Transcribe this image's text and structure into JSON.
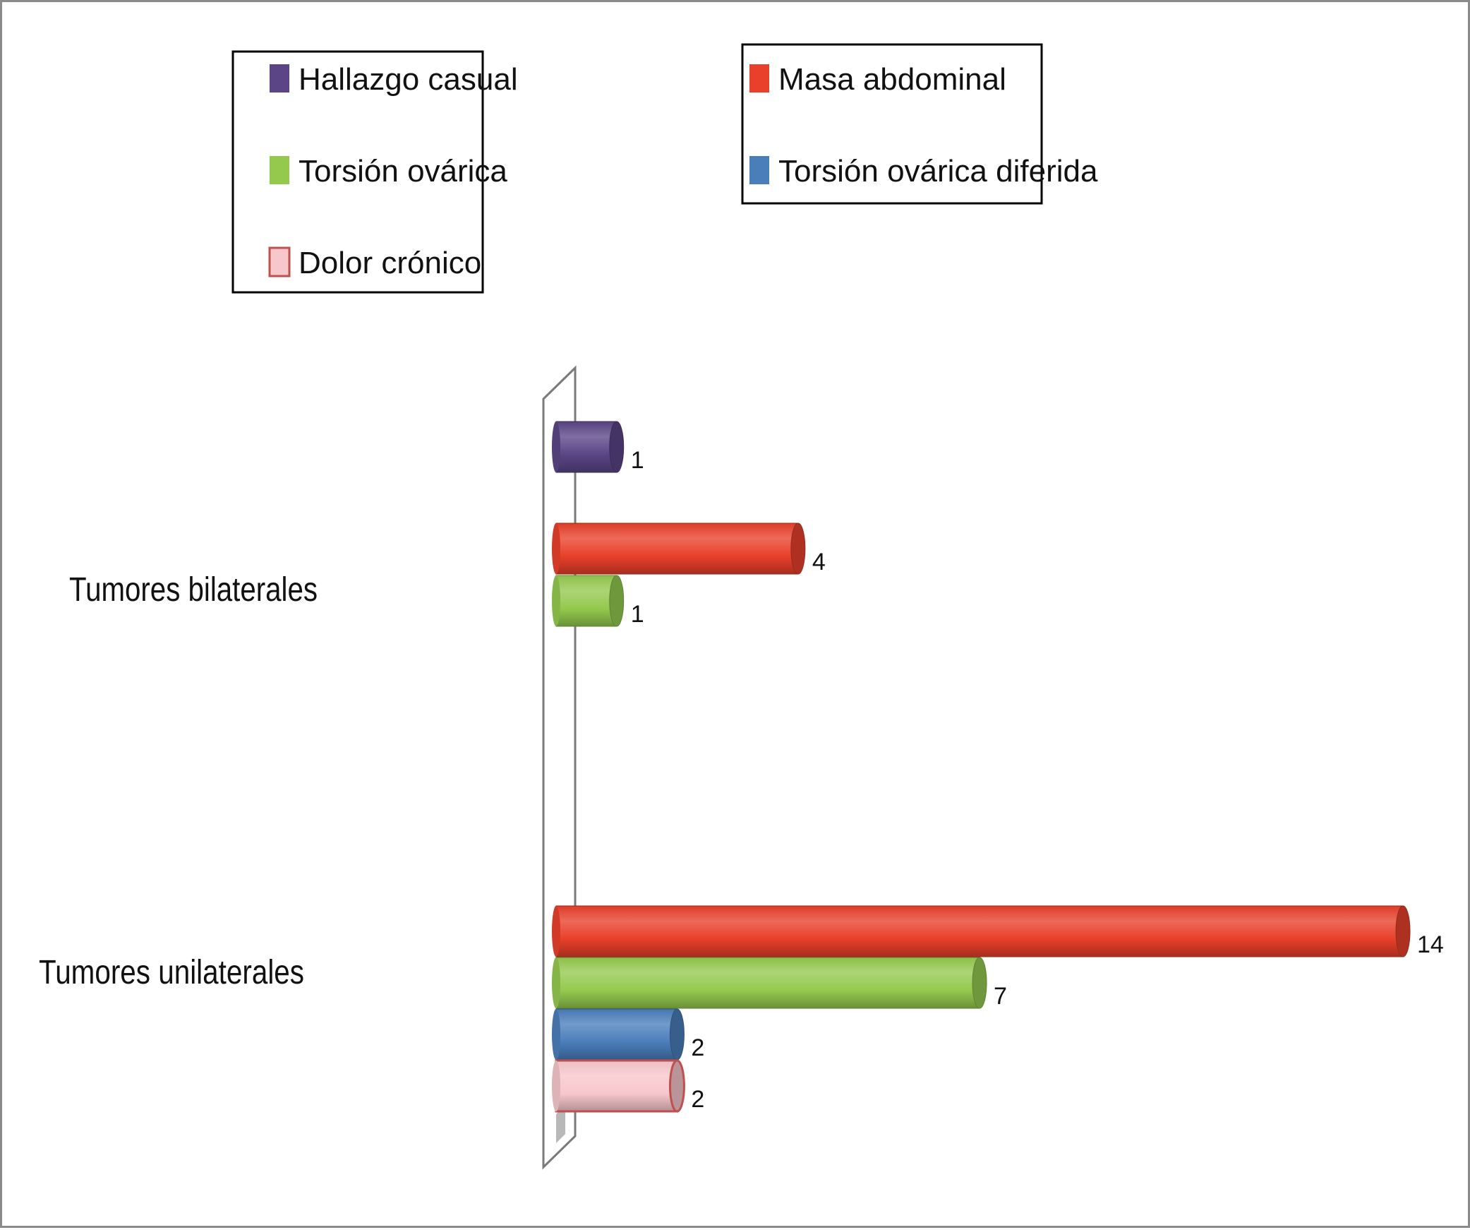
{
  "chart_data": {
    "type": "bar",
    "orientation": "horizontal",
    "style": "3d-cylinder",
    "title": "",
    "xlabel": "",
    "ylabel": "",
    "grid": false,
    "xlim": [
      0,
      14
    ],
    "categories": [
      "Tumores bilaterales",
      "Tumores unilaterales"
    ],
    "series": [
      {
        "name": "Hallazgo casual",
        "color": "#5b4586",
        "values": [
          1,
          null
        ]
      },
      {
        "name": "Masa abdominal",
        "color": "#e8402a",
        "values": [
          4,
          14
        ]
      },
      {
        "name": "Torsión ovárica",
        "color": "#94c94e",
        "values": [
          1,
          7
        ]
      },
      {
        "name": "Torsión ovárica diferida",
        "color": "#4a7ebb",
        "values": [
          null,
          2
        ]
      },
      {
        "name": "Dolor crónico",
        "color": "#f7c7cc",
        "edge_color": "#c0504d",
        "values": [
          null,
          2
        ]
      }
    ],
    "legends": [
      {
        "placement": "top-left",
        "entries": [
          "Hallazgo casual",
          "Torsión ovárica",
          "Dolor crónico"
        ]
      },
      {
        "placement": "top-center",
        "entries": [
          "Masa abdominal",
          "Torsión ovárica diferida"
        ]
      }
    ]
  }
}
